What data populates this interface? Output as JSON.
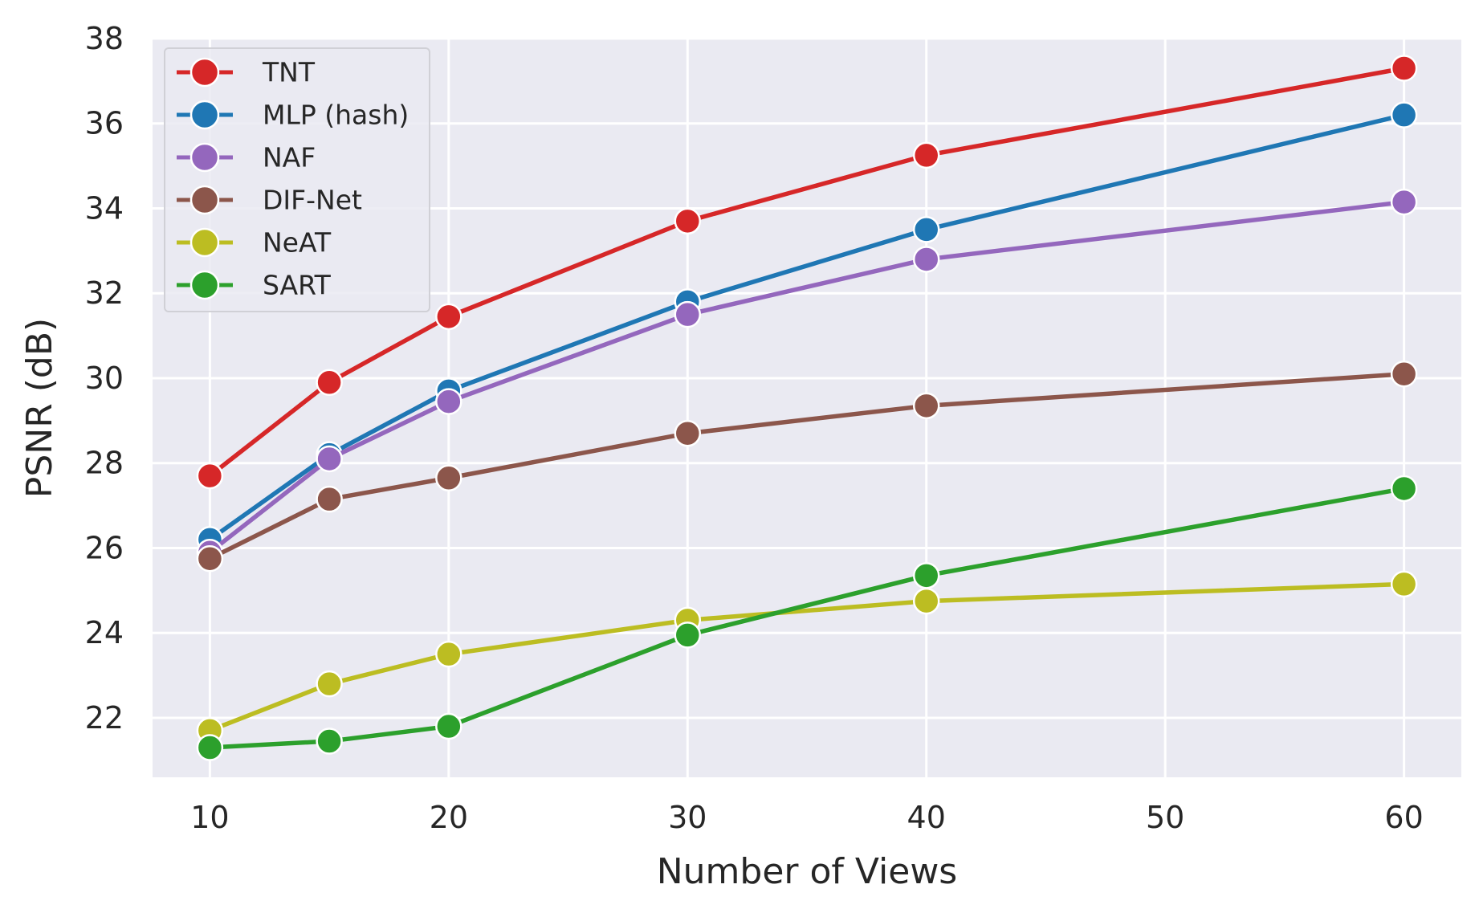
{
  "chart_data": {
    "type": "line",
    "title": "",
    "xlabel": "Number of Views",
    "ylabel": "PSNR (dB)",
    "x": [
      10,
      15,
      20,
      30,
      40,
      60
    ],
    "xlim": [
      7.6,
      62.4
    ],
    "ylim": [
      20.6,
      38.0
    ],
    "xticks": [
      10,
      20,
      30,
      40,
      50,
      60
    ],
    "yticks": [
      22,
      24,
      26,
      28,
      30,
      32,
      34,
      36,
      38
    ],
    "grid": true,
    "background": "#eaeaf2",
    "legend_position": "top-left",
    "series": [
      {
        "name": "TNT",
        "color": "#d62728",
        "values": [
          27.7,
          29.9,
          31.45,
          33.7,
          35.25,
          37.3
        ]
      },
      {
        "name": "MLP (hash)",
        "color": "#1f77b4",
        "values": [
          26.2,
          28.2,
          29.7,
          31.8,
          33.5,
          36.2
        ]
      },
      {
        "name": "NAF",
        "color": "#9467bd",
        "values": [
          25.9,
          28.1,
          29.45,
          31.5,
          32.8,
          34.15
        ]
      },
      {
        "name": "DIF-Net",
        "color": "#8c564b",
        "values": [
          25.75,
          27.15,
          27.65,
          28.7,
          29.35,
          30.1
        ]
      },
      {
        "name": "NeAT",
        "color": "#bcbd22",
        "values": [
          21.7,
          22.8,
          23.5,
          24.3,
          24.75,
          25.15
        ]
      },
      {
        "name": "SART",
        "color": "#2ca02c",
        "values": [
          21.3,
          21.45,
          21.8,
          23.95,
          25.35,
          27.4
        ]
      }
    ]
  }
}
